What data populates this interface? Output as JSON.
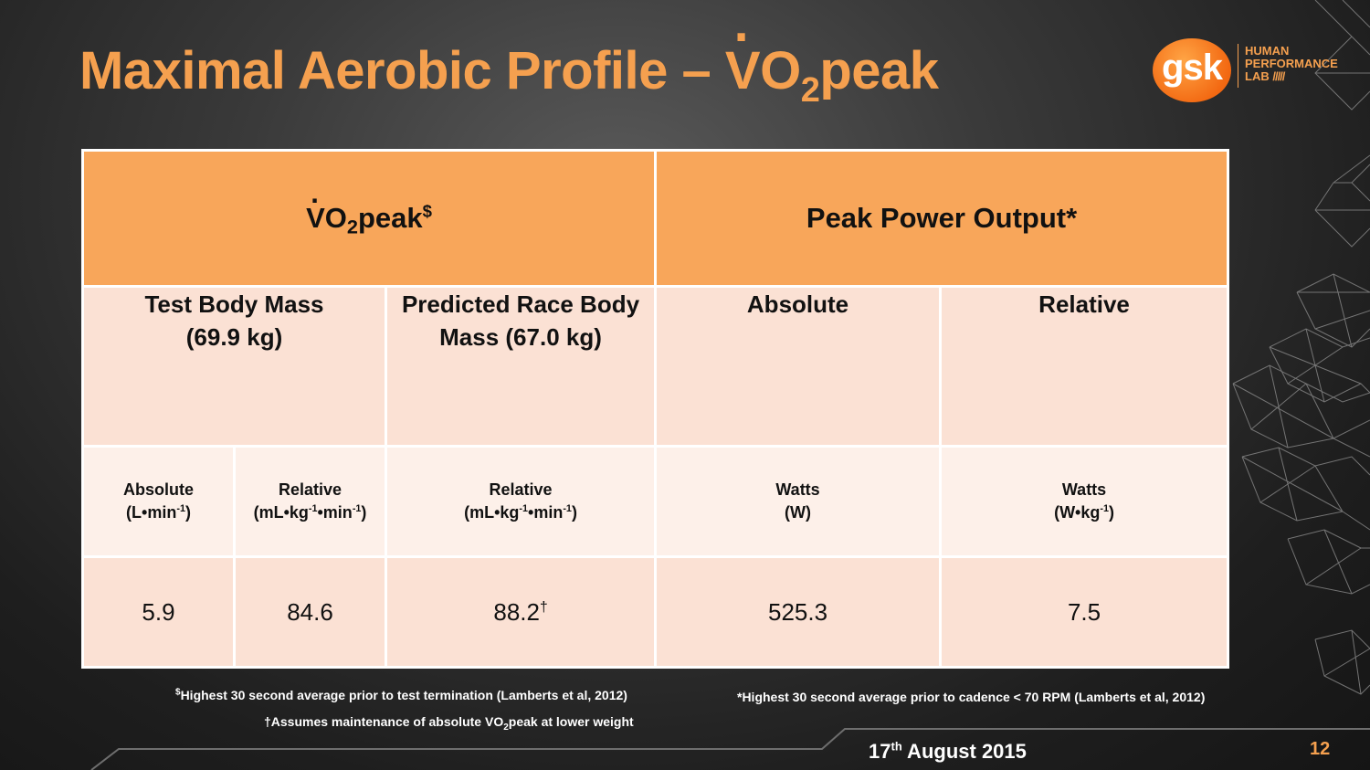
{
  "title": {
    "main": "Maximal Aerobic Profile – ",
    "v": "V",
    "o": "O",
    "sub": "2",
    "peak": "peak"
  },
  "logo": {
    "brand": "gsk",
    "line1": "HUMAN",
    "line2": "PERFORMANCE",
    "line3": "LAB"
  },
  "table": {
    "group1": {
      "v": "V",
      "o": "O",
      "sub": "2",
      "peak": "peak",
      "mark": "$"
    },
    "group2": "Peak Power Output*",
    "sub_headers": {
      "test_mass_1": "Test Body Mass",
      "test_mass_2": "(69.9 kg)",
      "predicted_1": "Predicted Race Body",
      "predicted_2": "Mass (67.0 kg)",
      "absolute": "Absolute",
      "relative": "Relative"
    },
    "units": {
      "abs_label": "Absolute",
      "abs_unit_a": "(L•min",
      "abs_unit_sup": "-1",
      "abs_unit_b": ")",
      "rel_label": "Relative",
      "rel_unit_a": "(mL•kg",
      "rel_unit_sup1": "-1",
      "rel_unit_b": "•min",
      "rel_unit_sup2": "-1",
      "rel_unit_c": ")",
      "rel2_label": "Relative",
      "watts_label": "Watts",
      "watts_unit": "(W)",
      "wkg_label": "Watts",
      "wkg_unit_a": "(W•kg",
      "wkg_unit_sup": "-1",
      "wkg_unit_b": ")"
    },
    "values": {
      "v1": "5.9",
      "v2": "84.6",
      "v3": "88.2",
      "v3_mark": "†",
      "v4": "525.3",
      "v5": "7.5"
    }
  },
  "footnotes": {
    "fn1_mark": "$",
    "fn1": "Highest 30 second average prior to test termination (Lamberts et al, 2012)",
    "fn2_a": "†Assumes maintenance of absolute V",
    "fn2_o": "O",
    "fn2_sub": "2",
    "fn2_b": "peak at lower weight",
    "fn3": "*Highest 30 second average prior to cadence < 70 RPM (Lamberts et al, 2012)"
  },
  "date": {
    "day": "17",
    "suffix": "th",
    "rest": " August 2015"
  },
  "page_number": "12",
  "colors": {
    "accent": "#f5a04f",
    "header": "#f8a65a",
    "cell": "#fbe1d4",
    "cell_light": "#fdf0e9"
  }
}
